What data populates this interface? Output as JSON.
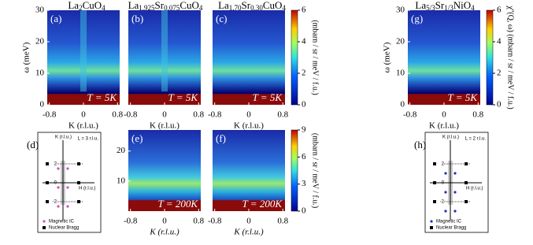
{
  "top_axes": {
    "ylabel": "ω (meV)",
    "ylim": [
      0,
      30
    ],
    "yticks": [
      0,
      10,
      20,
      30
    ],
    "xlim": [
      -0.85,
      0.85
    ],
    "xticks": [
      -0.8,
      0,
      0.8
    ],
    "xlabel": "K (r.l.u.)"
  },
  "bottom_axes": {
    "ylim": [
      0,
      27
    ],
    "yticks": [
      10,
      20
    ],
    "xlim": [
      -0.85,
      0.85
    ],
    "xticks": [
      -0.8,
      0,
      0.8
    ],
    "xlabel": "K (r.l.u.)"
  },
  "panels": [
    {
      "letter": "(a)",
      "title_parts": [
        "La",
        "2",
        "CuO",
        "4"
      ],
      "temperature": "T = 5K"
    },
    {
      "letter": "(b)",
      "title_parts": [
        "La",
        "1.925",
        "Sr",
        "0.075",
        "CuO",
        "4"
      ],
      "temperature": "T = 5K"
    },
    {
      "letter": "(c)",
      "title_parts": [
        "La",
        "1.70",
        "Sr",
        "0.30",
        "CuO",
        "4"
      ],
      "temperature": "T = 5K"
    },
    {
      "letter": "(g)",
      "title_parts": [
        "La",
        "5/3",
        "Sr",
        "1/3",
        "NiO",
        "4"
      ],
      "temperature": "T = 5K"
    },
    {
      "letter": "(e)",
      "temperature": "T = 200K"
    },
    {
      "letter": "(f)",
      "temperature": "T = 200K"
    }
  ],
  "colorbars": [
    {
      "label": "(mbarn / sr / meV / f.u.)",
      "lim": [
        0,
        6
      ],
      "ticks": [
        0,
        2,
        4,
        6
      ]
    },
    {
      "label": "χ''(Q, ω) (mbarn / sr / meV / f.u.)",
      "lim": [
        0,
        6
      ],
      "ticks": [
        0,
        2,
        4,
        6
      ]
    },
    {
      "label": "(mbarn / sr / meV / f.u.)",
      "lim": [
        0,
        9
      ],
      "ticks": [
        0,
        3,
        6,
        9
      ]
    }
  ],
  "diagrams": [
    {
      "letter": "(d)",
      "k_label": "K (r.l.u.)",
      "h_label": "H (r.l.u.)",
      "l_label": "L = 3 r.l.u.",
      "ticks": [
        "2",
        "0",
        "-2"
      ],
      "legend": [
        "Magnetic IC",
        "Nuclear Bragg"
      ]
    },
    {
      "letter": "(h)",
      "k_label": "K (r.l.u.)",
      "h_label": "H (r.l.u.)",
      "l_label": "L = 2 r.l.u.",
      "ticks": [
        "2",
        "0",
        "-2"
      ],
      "legend": [
        "Magnetic IC",
        "Nuclear Bragg"
      ]
    }
  ]
}
